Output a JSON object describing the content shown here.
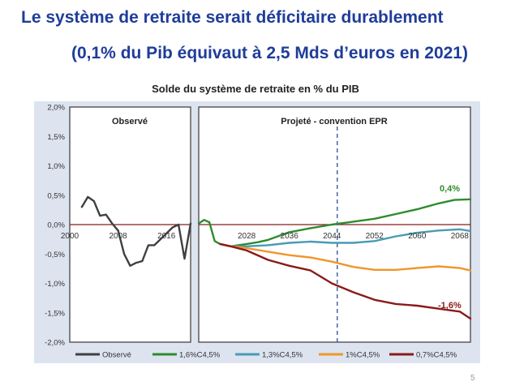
{
  "slide": {
    "title": "Le système de retraite serait déficitaire durablement",
    "subtitle": "(0,1% du Pib équivaut à 2,5 Mds d’euros en 2021)",
    "page_number": "5"
  },
  "colors": {
    "chart_background": "#dde4f0",
    "panel_background": "#ffffff",
    "zero_line": "#8b1a1a",
    "vertical_marker": "#3a5a9a"
  },
  "chart_data": {
    "type": "line",
    "title": "Solde du système de retraite en % du PIB",
    "ylim": [
      -2.0,
      2.0
    ],
    "y_ticks": [
      2.0,
      1.5,
      1.0,
      0.5,
      0.0,
      -0.5,
      -1.0,
      -1.5,
      -2.0
    ],
    "y_tick_labels": [
      "2,0%",
      "1,5%",
      "1,0%",
      "0,5%",
      "0,0%",
      "-0,5%",
      "-1,0%",
      "-1,5%",
      "-2,0%"
    ],
    "observed_panel": {
      "label": "Observé",
      "xlim": [
        2000,
        2020
      ],
      "x_ticks": [
        2000,
        2008,
        2016
      ],
      "x_tick_labels": [
        "2000",
        "2008",
        "2016"
      ]
    },
    "projected_panel": {
      "label": "Projeté - convention EPR",
      "xlim": [
        2019,
        2070
      ],
      "x_ticks": [
        2028,
        2036,
        2044,
        2052,
        2060,
        2068
      ],
      "x_tick_labels": [
        "2028",
        "2036",
        "2044",
        "2052",
        "2060",
        "2068"
      ],
      "marker_year": 2045
    },
    "series": [
      {
        "name": "Observé",
        "color": "#404040",
        "panel": "observed",
        "x": [
          2002,
          2003,
          2004,
          2005,
          2006,
          2007,
          2008,
          2009,
          2010,
          2011,
          2012,
          2013,
          2014,
          2015,
          2016,
          2017,
          2018,
          2019,
          2020
        ],
        "y": [
          0.3,
          0.47,
          0.4,
          0.15,
          0.17,
          0.02,
          -0.1,
          -0.5,
          -0.7,
          -0.65,
          -0.62,
          -0.35,
          -0.35,
          -0.25,
          -0.15,
          -0.05,
          0.0,
          -0.58,
          0.02
        ]
      },
      {
        "name": "1,6%C4,5%",
        "color": "#2e8b2e",
        "panel": "projected",
        "x": [
          2019,
          2020,
          2021,
          2022,
          2023,
          2025,
          2028,
          2030,
          2032,
          2036,
          2040,
          2044,
          2048,
          2052,
          2056,
          2060,
          2064,
          2067,
          2070
        ],
        "y": [
          0.02,
          0.08,
          0.04,
          -0.28,
          -0.33,
          -0.37,
          -0.33,
          -0.3,
          -0.26,
          -0.13,
          -0.06,
          0.0,
          0.05,
          0.1,
          0.18,
          0.26,
          0.36,
          0.42,
          0.43
        ]
      },
      {
        "name": "1,3%C4,5%",
        "color": "#4a9ab5",
        "panel": "projected",
        "x": [
          2023,
          2025,
          2028,
          2032,
          2036,
          2040,
          2044,
          2048,
          2052,
          2056,
          2060,
          2064,
          2068,
          2070
        ],
        "y": [
          -0.33,
          -0.37,
          -0.37,
          -0.35,
          -0.31,
          -0.29,
          -0.31,
          -0.31,
          -0.28,
          -0.2,
          -0.14,
          -0.1,
          -0.08,
          -0.11
        ]
      },
      {
        "name": "1%C4,5%",
        "color": "#f0962a",
        "panel": "projected",
        "x": [
          2023,
          2025,
          2028,
          2032,
          2036,
          2040,
          2044,
          2048,
          2052,
          2056,
          2060,
          2064,
          2068,
          2070
        ],
        "y": [
          -0.33,
          -0.37,
          -0.4,
          -0.46,
          -0.52,
          -0.56,
          -0.63,
          -0.72,
          -0.77,
          -0.77,
          -0.74,
          -0.71,
          -0.74,
          -0.78
        ]
      },
      {
        "name": "0,7%C4,5%",
        "color": "#8b1a1a",
        "panel": "projected",
        "x": [
          2023,
          2025,
          2028,
          2032,
          2036,
          2040,
          2044,
          2048,
          2052,
          2056,
          2060,
          2064,
          2068,
          2070
        ],
        "y": [
          -0.33,
          -0.37,
          -0.44,
          -0.6,
          -0.7,
          -0.78,
          -1.0,
          -1.15,
          -1.28,
          -1.35,
          -1.38,
          -1.43,
          -1.48,
          -1.6
        ]
      }
    ],
    "annotations": [
      {
        "text": "0,4%",
        "color": "#2e8b2e"
      },
      {
        "text": "-1,6%",
        "color": "#8b1a1a"
      }
    ],
    "legend": {
      "position": "bottom",
      "entries": [
        {
          "label": "Observé",
          "color": "#404040"
        },
        {
          "label": "1,6%C4,5%",
          "color": "#2e8b2e"
        },
        {
          "label": "1,3%C4,5%",
          "color": "#4a9ab5"
        },
        {
          "label": "1%C4,5%",
          "color": "#f0962a"
        },
        {
          "label": "0,7%C4,5%",
          "color": "#8b1a1a"
        }
      ]
    }
  }
}
